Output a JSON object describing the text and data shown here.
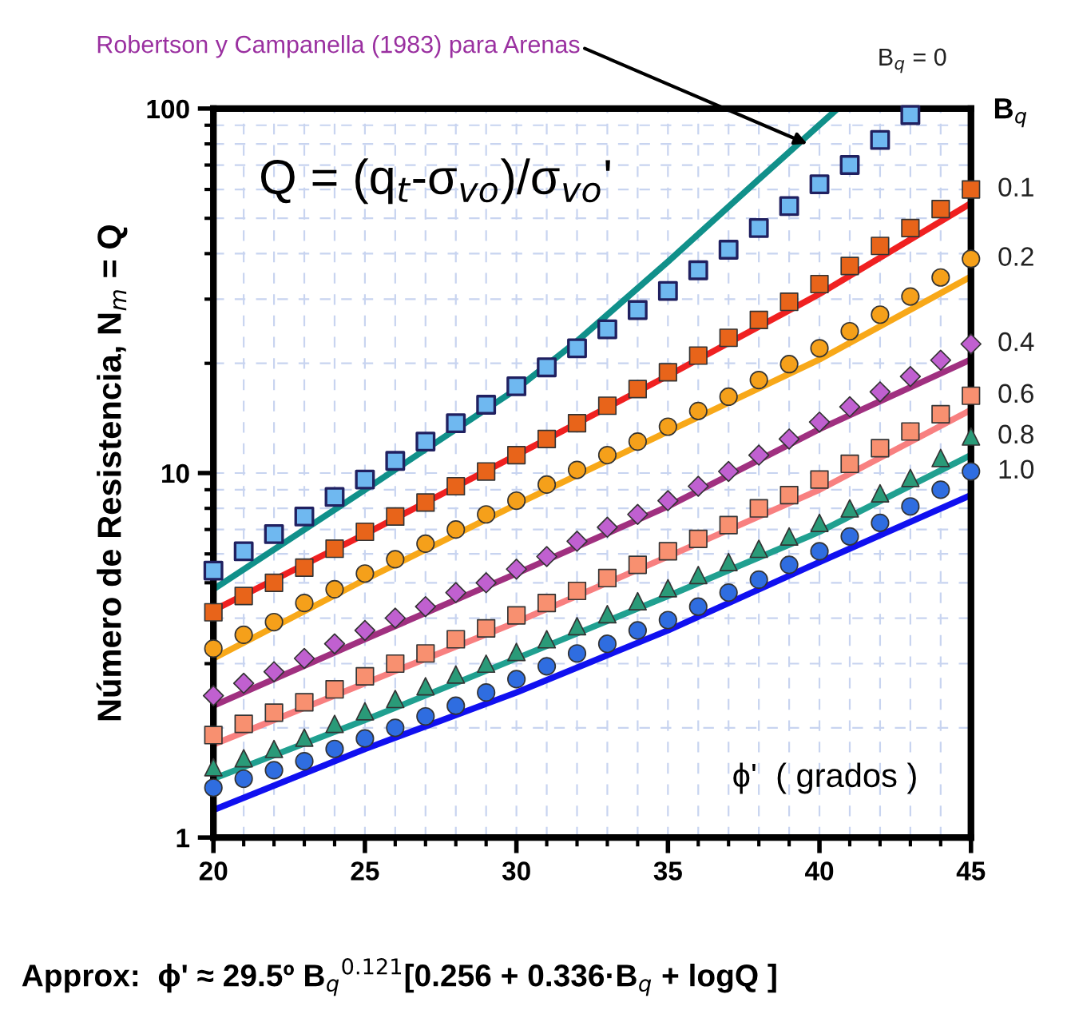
{
  "chart_data": {
    "type": "line",
    "xlabel": "ϕ'  ( grados )",
    "ylabel": "Número de Resistencia, N$_{m}$ = Q",
    "legend_title": "B$_{q}$",
    "annotations": [
      {
        "text": "Robertson y Campanella (1983) para Arenas",
        "x": 39.6,
        "y": 80
      },
      "Q = (q$_{t}$-σ$_{vo}$)/σ$_{vo}$'",
      "Approx:  ϕ' ≈ 29.5º B$_{q}$$^{0.121}$[0.256 + 0.336·B$_{q}$ + logQ ]"
    ],
    "log": "y",
    "xlim": [
      20,
      45
    ],
    "xticks": [
      20,
      25,
      30,
      35,
      40,
      45
    ],
    "ylim": [
      1,
      100
    ],
    "yticks": [
      1,
      10,
      100
    ],
    "grid": true,
    "legend": "right",
    "series": [
      {
        "name": "B$_{q}$ = 0",
        "color": "#10908a",
        "x": [
          20,
          25,
          30,
          32,
          35,
          38,
          40.6
        ],
        "values": [
          4.8,
          9,
          17,
          23,
          38,
          64,
          100
        ]
      },
      {
        "color": "#f02020",
        "x": [
          20,
          25,
          30,
          35,
          40,
          45
        ],
        "values": [
          4.2,
          6.8,
          11.2,
          18.5,
          31,
          55
        ]
      },
      {
        "color": "#f8a818",
        "x": [
          20,
          25,
          30,
          35,
          40,
          45
        ],
        "values": [
          3.1,
          5.1,
          8.2,
          13,
          20.5,
          34.6
        ]
      },
      {
        "color": "#a03080",
        "x": [
          20,
          25,
          30,
          35,
          40,
          45
        ],
        "values": [
          2.3,
          3.5,
          5.3,
          8.1,
          13.2,
          20.5
        ]
      },
      {
        "color": "#f88080",
        "x": [
          20,
          25,
          30,
          35,
          40,
          45
        ],
        "values": [
          1.8,
          2.65,
          3.9,
          5.9,
          9.0,
          14.9
        ]
      },
      {
        "color": "#20a090",
        "x": [
          20,
          25,
          30,
          35,
          40,
          45
        ],
        "values": [
          1.45,
          2.1,
          3.1,
          4.6,
          6.9,
          11.2
        ]
      },
      {
        "color": "#1010f0",
        "x": [
          20,
          25,
          30,
          35,
          40,
          45
        ],
        "values": [
          1.19,
          1.75,
          2.5,
          3.7,
          5.7,
          8.7
        ]
      },
      {
        "type": "scatter",
        "marker": "square",
        "color": "#6fb8f0",
        "x": [
          20,
          21,
          22,
          23,
          24,
          25,
          26,
          27,
          28,
          29,
          30,
          31,
          32,
          33,
          34,
          35,
          36,
          37,
          38,
          39,
          40,
          41,
          42,
          43
        ],
        "values": [
          5.4,
          6.1,
          6.8,
          7.6,
          8.6,
          9.6,
          10.8,
          12.2,
          13.7,
          15.4,
          17.3,
          19.5,
          22,
          24.8,
          28,
          31.6,
          36,
          41,
          47,
          54,
          62,
          70,
          82,
          96
        ]
      },
      {
        "name": "0.1",
        "type": "scatter",
        "marker": "square",
        "color": "#e8641a",
        "x": [
          20,
          21,
          22,
          23,
          24,
          25,
          26,
          27,
          28,
          29,
          30,
          31,
          32,
          33,
          34,
          35,
          36,
          37,
          38,
          39,
          40,
          41,
          42,
          43,
          44,
          45
        ],
        "values": [
          4.15,
          4.6,
          5.0,
          5.5,
          6.2,
          6.9,
          7.6,
          8.3,
          9.2,
          10.1,
          11.2,
          12.4,
          13.7,
          15.3,
          17,
          18.9,
          21,
          23.5,
          26.3,
          29.5,
          33,
          37,
          42,
          47,
          53,
          60
        ]
      },
      {
        "name": "0.2",
        "type": "scatter",
        "marker": "circle",
        "color": "#f5a01a",
        "x": [
          20,
          21,
          22,
          23,
          24,
          25,
          26,
          27,
          28,
          29,
          30,
          31,
          32,
          33,
          34,
          35,
          36,
          37,
          38,
          39,
          40,
          41,
          42,
          43,
          44,
          45
        ],
        "values": [
          3.3,
          3.6,
          3.9,
          4.4,
          4.8,
          5.3,
          5.8,
          6.4,
          7.0,
          7.7,
          8.4,
          9.3,
          10.2,
          11.2,
          12.2,
          13.4,
          14.8,
          16.2,
          18,
          19.9,
          22,
          24.5,
          27.2,
          30.5,
          34.4,
          38.7
        ]
      },
      {
        "name": "0.4",
        "type": "scatter",
        "marker": "diamond",
        "color": "#c060d0",
        "x": [
          20,
          21,
          22,
          23,
          24,
          25,
          26,
          27,
          28,
          29,
          30,
          31,
          32,
          33,
          34,
          35,
          36,
          37,
          38,
          39,
          40,
          41,
          42,
          43,
          44,
          45
        ],
        "values": [
          2.45,
          2.65,
          2.85,
          3.1,
          3.4,
          3.7,
          4.0,
          4.3,
          4.7,
          5.0,
          5.45,
          5.9,
          6.5,
          7.1,
          7.7,
          8.4,
          9.2,
          10.1,
          11.2,
          12.4,
          13.8,
          15.2,
          16.7,
          18.4,
          20.4,
          22.6
        ]
      },
      {
        "name": "0.6",
        "type": "scatter",
        "marker": "square",
        "color": "#f89070",
        "x": [
          20,
          21,
          22,
          23,
          24,
          25,
          26,
          27,
          28,
          29,
          30,
          31,
          32,
          33,
          34,
          35,
          36,
          37,
          38,
          39,
          40,
          41,
          42,
          43,
          44,
          45
        ],
        "values": [
          1.91,
          2.05,
          2.2,
          2.35,
          2.55,
          2.77,
          3.0,
          3.2,
          3.5,
          3.75,
          4.07,
          4.4,
          4.75,
          5.15,
          5.6,
          6.1,
          6.6,
          7.2,
          8.0,
          8.7,
          9.6,
          10.6,
          11.7,
          13.0,
          14.5,
          16.3
        ]
      },
      {
        "name": "0.8",
        "type": "scatter",
        "marker": "triangle",
        "color": "#2a9a78",
        "x": [
          20,
          21,
          22,
          23,
          24,
          25,
          26,
          27,
          28,
          29,
          30,
          31,
          32,
          33,
          34,
          35,
          36,
          37,
          38,
          39,
          40,
          41,
          42,
          43,
          44,
          45
        ],
        "values": [
          1.56,
          1.65,
          1.75,
          1.88,
          2.05,
          2.22,
          2.4,
          2.6,
          2.8,
          3.0,
          3.23,
          3.5,
          3.8,
          4.1,
          4.45,
          4.83,
          5.25,
          5.7,
          6.2,
          6.7,
          7.3,
          8.0,
          8.8,
          9.7,
          11,
          12.6
        ]
      },
      {
        "name": "1.0",
        "type": "scatter",
        "marker": "circle",
        "color": "#2f6de0",
        "x": [
          20,
          21,
          22,
          23,
          24,
          25,
          26,
          27,
          28,
          29,
          30,
          31,
          32,
          33,
          34,
          35,
          36,
          37,
          38,
          39,
          40,
          41,
          42,
          43,
          44,
          45
        ],
        "values": [
          1.37,
          1.45,
          1.53,
          1.62,
          1.75,
          1.87,
          2.0,
          2.15,
          2.3,
          2.5,
          2.72,
          2.95,
          3.2,
          3.4,
          3.7,
          3.95,
          4.3,
          4.7,
          5.1,
          5.6,
          6.1,
          6.7,
          7.3,
          8.1,
          9.0,
          10.1
        ]
      }
    ]
  }
}
